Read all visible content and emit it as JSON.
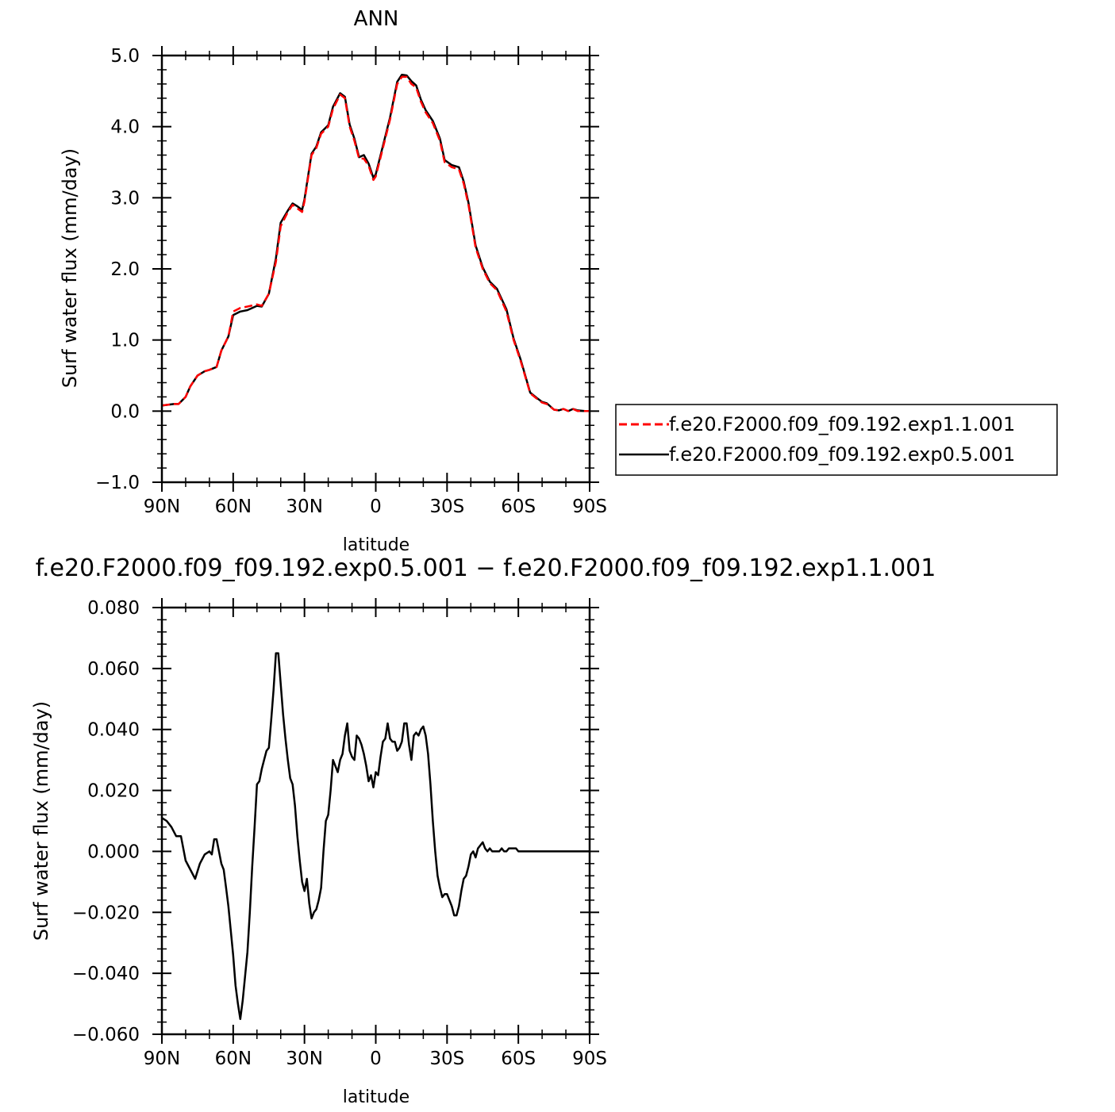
{
  "chart_data": [
    {
      "type": "line",
      "title": "ANN",
      "xlabel": "latitude",
      "ylabel": "Surf water flux (mm/day)",
      "xlim": [
        90,
        -90
      ],
      "ylim": [
        -1.0,
        5.0
      ],
      "x_tick_values": [
        90,
        60,
        30,
        0,
        -30,
        -60,
        -90
      ],
      "x_tick_labels": [
        "90N",
        "60N",
        "30N",
        "0",
        "30S",
        "60S",
        "90S"
      ],
      "y_tick_values": [
        -1.0,
        0.0,
        1.0,
        2.0,
        3.0,
        4.0,
        5.0
      ],
      "y_tick_labels": [
        "−1.0",
        "0.0",
        "1.0",
        "2.0",
        "3.0",
        "4.0",
        "5.0"
      ],
      "legend_position": "right",
      "grid": false,
      "series": [
        {
          "name": "f.e20.F2000.f09_f09.192.exp1.1.001",
          "color": "#ff0000",
          "style": "dashed",
          "x": [
            90,
            85,
            83,
            80,
            78,
            75,
            72,
            70,
            67,
            65,
            62,
            60,
            57,
            54,
            50,
            48,
            45,
            42,
            40,
            37,
            35,
            33,
            31,
            30,
            27,
            25,
            23,
            20,
            18,
            15,
            13,
            11,
            9,
            7,
            5,
            3,
            1,
            0,
            -3,
            -6,
            -9,
            -11,
            -13,
            -15,
            -17,
            -19,
            -21,
            -24,
            -27,
            -29,
            -32,
            -35,
            -37,
            -39,
            -42,
            -45,
            -48,
            -51,
            -55,
            -58,
            -61,
            -65,
            -68,
            -70,
            -72,
            -75,
            -77,
            -79,
            -81,
            -83,
            -85,
            -88,
            -90
          ],
          "y": [
            0.08,
            0.1,
            0.1,
            0.2,
            0.35,
            0.5,
            0.56,
            0.58,
            0.62,
            0.85,
            1.05,
            1.4,
            1.45,
            1.47,
            1.5,
            1.48,
            1.65,
            2.1,
            2.6,
            2.8,
            2.9,
            2.85,
            2.8,
            2.95,
            3.6,
            3.7,
            3.9,
            4.0,
            4.25,
            4.45,
            4.4,
            4.0,
            3.8,
            3.55,
            3.55,
            3.45,
            3.25,
            3.3,
            3.7,
            4.1,
            4.6,
            4.7,
            4.7,
            4.6,
            4.55,
            4.35,
            4.2,
            4.05,
            3.8,
            3.5,
            3.43,
            3.4,
            3.2,
            2.9,
            2.3,
            2.0,
            1.8,
            1.7,
            1.4,
            1.0,
            0.7,
            0.25,
            0.17,
            0.12,
            0.1,
            0.02,
            0.01,
            0.03,
            0.0,
            0.03,
            0.0,
            0.0,
            0.0
          ]
        },
        {
          "name": "f.e20.F2000.f09_f09.192.exp0.5.001",
          "color": "#000000",
          "style": "solid",
          "x": [
            90,
            85,
            83,
            80,
            78,
            75,
            72,
            70,
            67,
            65,
            62,
            60,
            57,
            54,
            50,
            48,
            45,
            42,
            40,
            37,
            35,
            33,
            31,
            30,
            27,
            25,
            23,
            20,
            18,
            15,
            13,
            11,
            9,
            7,
            5,
            3,
            1,
            0,
            -3,
            -6,
            -9,
            -11,
            -13,
            -15,
            -17,
            -19,
            -21,
            -24,
            -27,
            -29,
            -32,
            -35,
            -37,
            -39,
            -42,
            -45,
            -48,
            -51,
            -55,
            -58,
            -61,
            -65,
            -68,
            -70,
            -72,
            -75,
            -77,
            -79,
            -81,
            -83,
            -85,
            -88,
            -90
          ],
          "y": [
            0.08,
            0.1,
            0.1,
            0.2,
            0.35,
            0.5,
            0.56,
            0.58,
            0.62,
            0.85,
            1.05,
            1.35,
            1.4,
            1.42,
            1.48,
            1.47,
            1.65,
            2.15,
            2.65,
            2.82,
            2.92,
            2.88,
            2.83,
            2.98,
            3.62,
            3.72,
            3.92,
            4.02,
            4.28,
            4.47,
            4.42,
            4.03,
            3.83,
            3.57,
            3.6,
            3.48,
            3.28,
            3.33,
            3.73,
            4.13,
            4.63,
            4.73,
            4.72,
            4.64,
            4.58,
            4.38,
            4.23,
            4.08,
            3.83,
            3.53,
            3.46,
            3.43,
            3.23,
            2.93,
            2.33,
            2.02,
            1.82,
            1.72,
            1.43,
            1.02,
            0.72,
            0.26,
            0.18,
            0.13,
            0.11,
            0.02,
            0.01,
            0.03,
            0.0,
            0.03,
            0.01,
            0.0,
            0.0
          ]
        }
      ]
    },
    {
      "type": "line",
      "title": "f.e20.F2000.f09_f09.192.exp0.5.001 − f.e20.F2000.f09_f09.192.exp1.1.001",
      "xlabel": "latitude",
      "ylabel": "Surf water flux (mm/day)",
      "xlim": [
        90,
        -90
      ],
      "ylim": [
        -0.06,
        0.08
      ],
      "x_tick_values": [
        90,
        60,
        30,
        0,
        -30,
        -60,
        -90
      ],
      "x_tick_labels": [
        "90N",
        "60N",
        "30N",
        "0",
        "30S",
        "60S",
        "90S"
      ],
      "y_tick_values": [
        -0.06,
        -0.04,
        -0.02,
        0.0,
        0.02,
        0.04,
        0.06,
        0.08
      ],
      "y_tick_labels": [
        "−0.060",
        "−0.040",
        "−0.020",
        "0.000",
        "0.020",
        "0.040",
        "0.060",
        "0.080"
      ],
      "grid": false,
      "series": [
        {
          "color": "#000000",
          "style": "solid",
          "x": [
            90,
            88,
            86,
            84,
            82,
            80,
            78,
            76,
            74,
            72,
            70,
            69,
            68,
            67,
            66,
            65,
            64,
            63,
            62,
            61,
            60,
            59,
            58,
            57,
            56,
            55,
            54,
            53,
            52,
            51,
            50,
            49,
            48,
            47,
            46,
            45,
            44,
            43,
            42,
            41,
            40,
            39,
            38,
            37,
            36,
            35,
            34,
            33,
            32,
            31,
            30,
            29,
            28,
            27,
            26,
            25,
            24,
            23,
            22,
            21,
            20,
            19,
            18,
            17,
            16,
            15,
            14,
            13,
            12,
            11,
            10,
            9,
            8,
            7,
            6,
            5,
            4,
            3,
            2,
            1,
            0,
            -1,
            -2,
            -3,
            -4,
            -5,
            -6,
            -7,
            -8,
            -9,
            -10,
            -11,
            -12,
            -13,
            -14,
            -15,
            -16,
            -17,
            -18,
            -19,
            -20,
            -21,
            -22,
            -23,
            -24,
            -25,
            -26,
            -27,
            -28,
            -29,
            -30,
            -31,
            -32,
            -33,
            -34,
            -35,
            -36,
            -37,
            -38,
            -39,
            -40,
            -41,
            -42,
            -43,
            -44,
            -45,
            -46,
            -47,
            -48,
            -49,
            -50,
            -51,
            -52,
            -53,
            -54,
            -55,
            -56,
            -57,
            -58,
            -59,
            -60,
            -61,
            -62,
            -63,
            -64,
            -65,
            -66,
            -67,
            -68,
            -69,
            -70,
            -72,
            -74,
            -76,
            -78,
            -80,
            -82,
            -84,
            -86,
            -88,
            -90
          ],
          "y": [
            0.011,
            0.01,
            0.008,
            0.005,
            0.005,
            -0.003,
            -0.006,
            -0.009,
            -0.004,
            -0.001,
            0.0,
            -0.001,
            0.004,
            0.004,
            0.0,
            -0.004,
            -0.006,
            -0.012,
            -0.018,
            -0.026,
            -0.034,
            -0.044,
            -0.05,
            -0.055,
            -0.049,
            -0.041,
            -0.033,
            -0.02,
            -0.005,
            0.008,
            0.022,
            0.023,
            0.027,
            0.03,
            0.033,
            0.034,
            0.043,
            0.053,
            0.065,
            0.065,
            0.055,
            0.045,
            0.037,
            0.03,
            0.024,
            0.022,
            0.015,
            0.005,
            -0.003,
            -0.01,
            -0.013,
            -0.009,
            -0.017,
            -0.022,
            -0.02,
            -0.019,
            -0.016,
            -0.012,
            0.0,
            0.01,
            0.012,
            0.02,
            0.03,
            0.028,
            0.026,
            0.03,
            0.032,
            0.038,
            0.042,
            0.033,
            0.031,
            0.03,
            0.038,
            0.037,
            0.035,
            0.032,
            0.028,
            0.023,
            0.025,
            0.021,
            0.026,
            0.025,
            0.031,
            0.036,
            0.037,
            0.042,
            0.037,
            0.036,
            0.036,
            0.033,
            0.034,
            0.036,
            0.042,
            0.042,
            0.035,
            0.03,
            0.038,
            0.039,
            0.038,
            0.04,
            0.041,
            0.038,
            0.032,
            0.022,
            0.01,
            0.0,
            -0.008,
            -0.012,
            -0.015,
            -0.014,
            -0.014,
            -0.016,
            -0.018,
            -0.021,
            -0.021,
            -0.018,
            -0.013,
            -0.009,
            -0.008,
            -0.005,
            -0.001,
            0.0,
            -0.002,
            0.001,
            0.002,
            0.003,
            0.001,
            0.0,
            0.001,
            0.0,
            0.0,
            0.0,
            0.0,
            0.001,
            0.0,
            0.0,
            0.001,
            0.001,
            0.001,
            0.001,
            0.0,
            0.0,
            0.0,
            0.0,
            0.0,
            0.0,
            0.0,
            0.0,
            0.0,
            0.0,
            0.0,
            0.0,
            0.0,
            0.0,
            0.0,
            0.0,
            0.0,
            0.0,
            0.0,
            0.0,
            0.0
          ]
        }
      ]
    }
  ]
}
